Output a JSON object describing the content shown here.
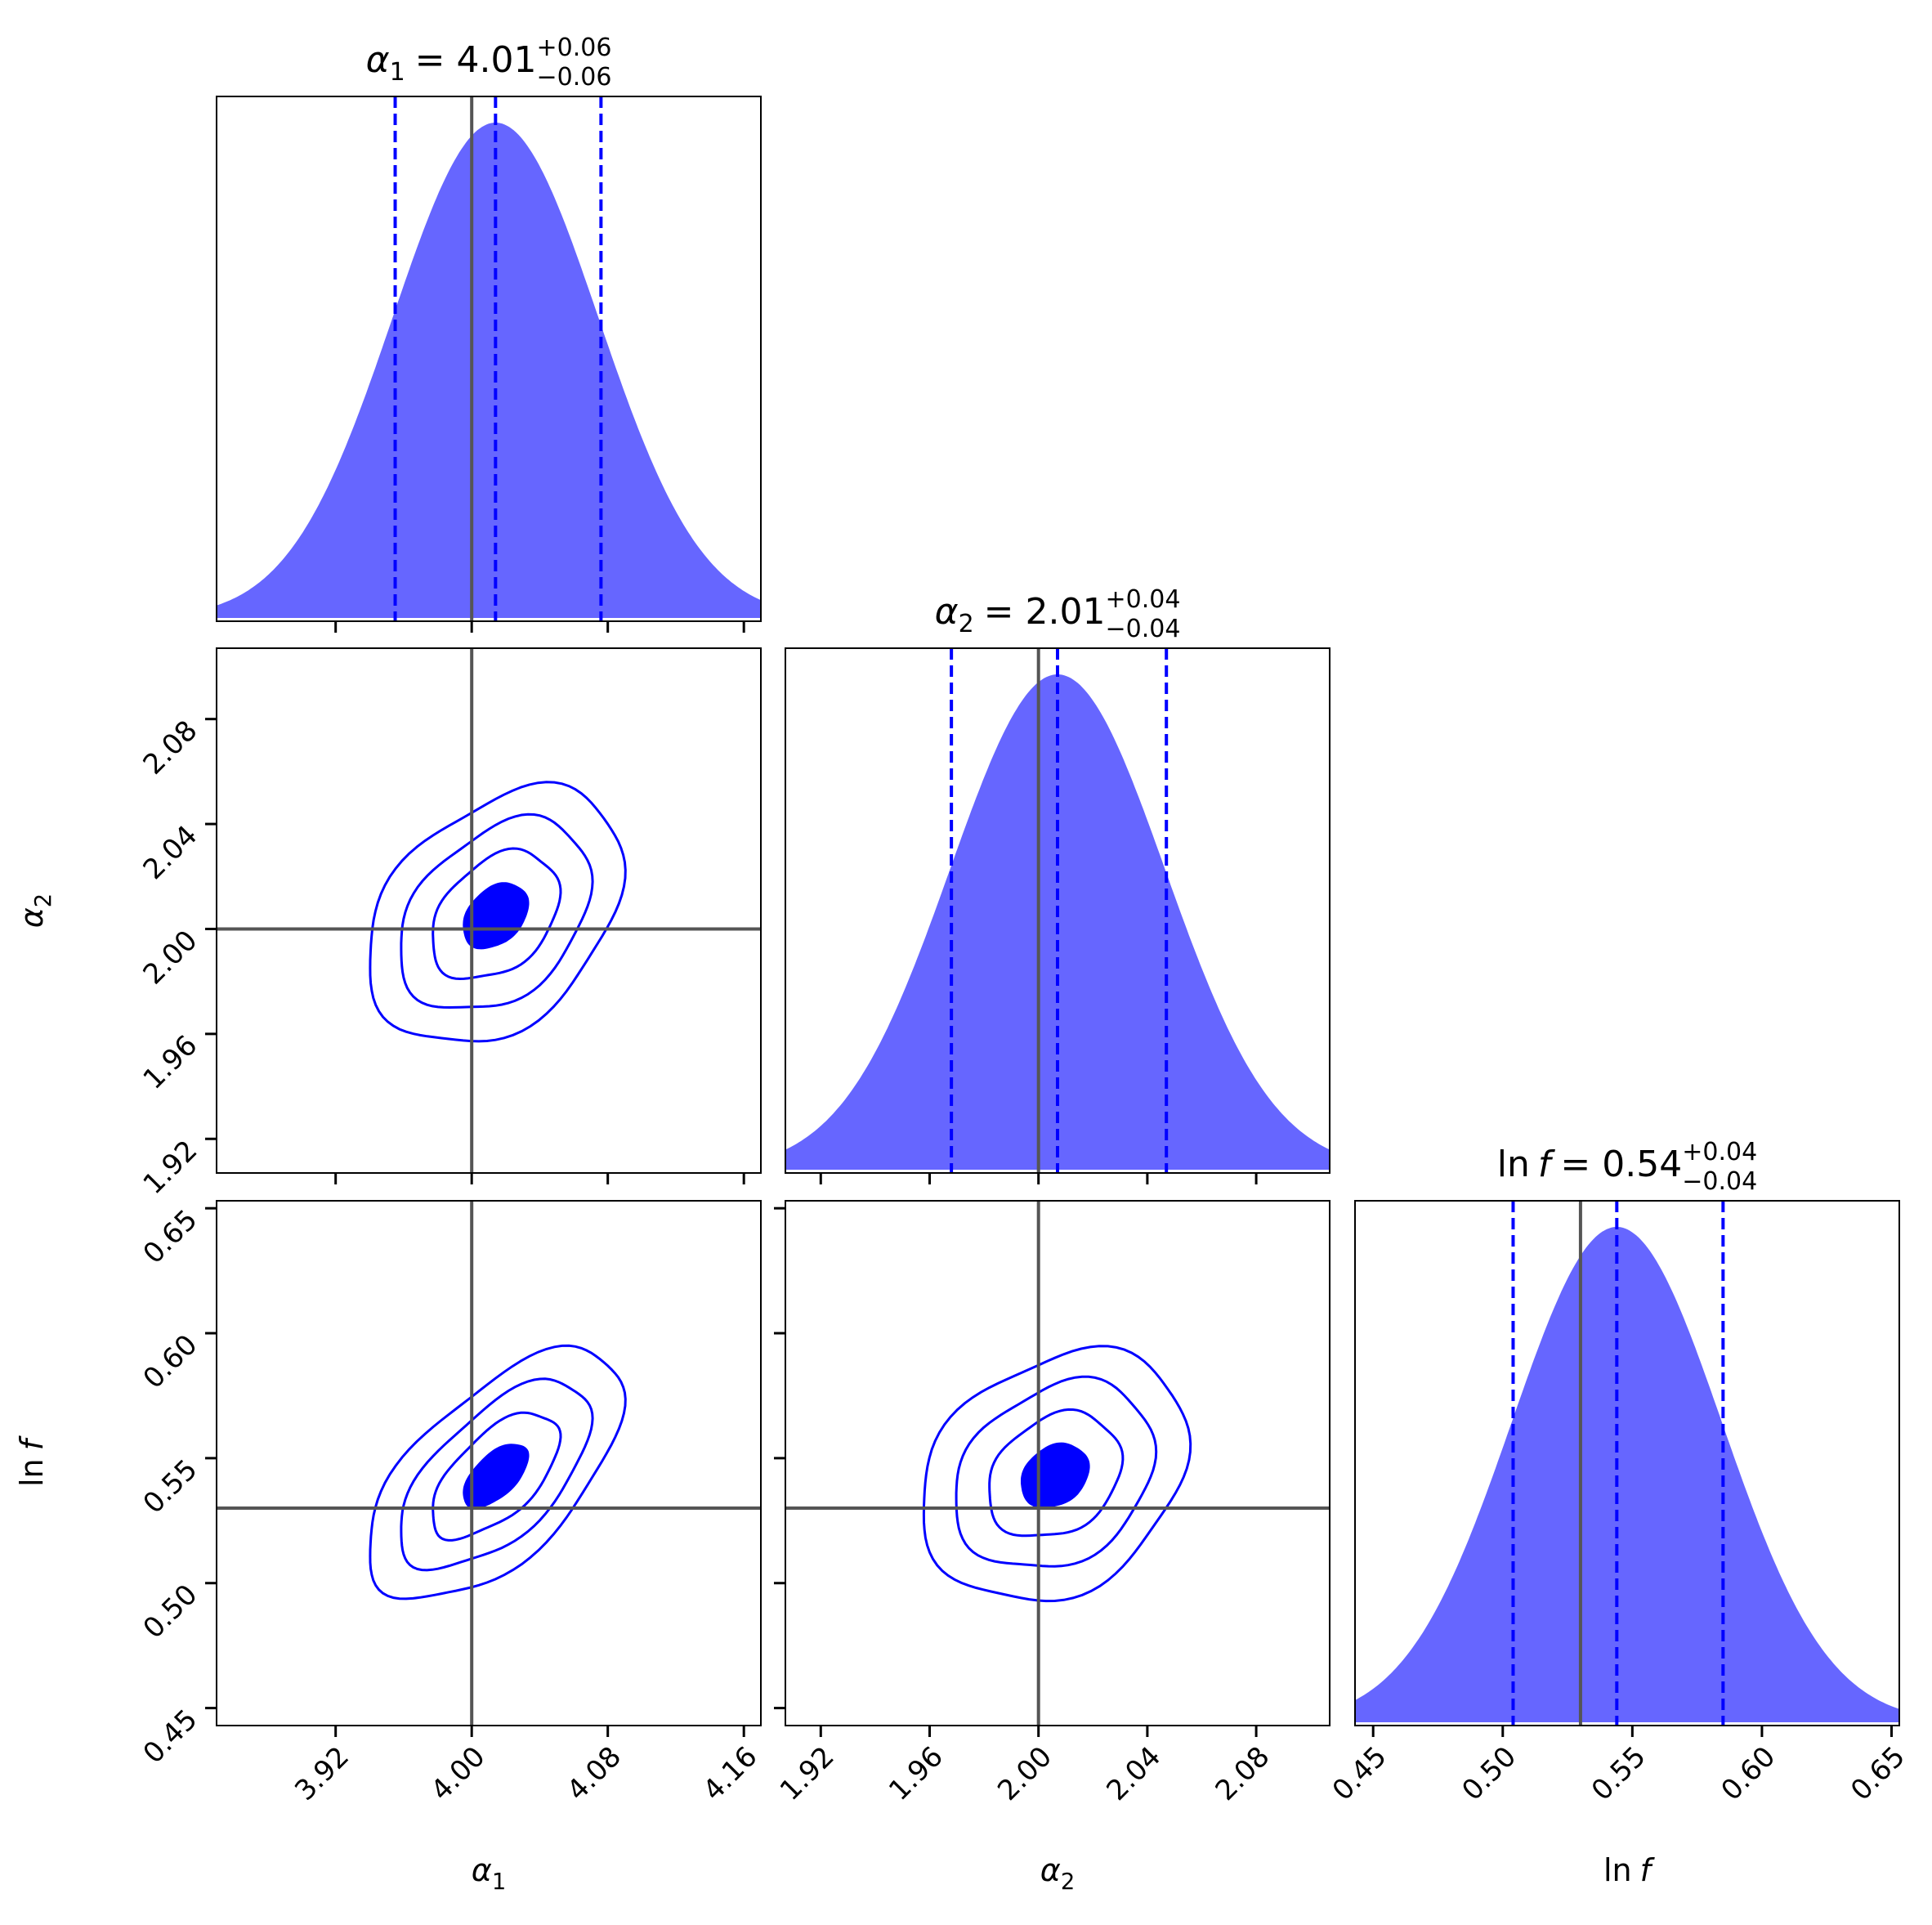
{
  "chart_data": {
    "type": "corner",
    "parameters": [
      {
        "key": "a1",
        "label_symbol": "α",
        "label_sub": "1",
        "label_italic": "",
        "range": [
          3.85,
          4.17
        ],
        "ticks": [
          "3.92",
          "4.00",
          "4.08",
          "4.16"
        ],
        "tick_values": [
          3.92,
          4.0,
          4.08,
          4.16
        ],
        "truth": 4.0,
        "median": 4.014,
        "q16": 3.955,
        "q84": 4.076,
        "sigma": 0.0605,
        "title": {
          "eq": "= 4.01",
          "plus": "+0.06",
          "minus": "−0.06"
        }
      },
      {
        "key": "a2",
        "label_symbol": "α",
        "label_sub": "2",
        "label_italic": "",
        "range": [
          1.907,
          2.107
        ],
        "ticks": [
          "1.92",
          "1.96",
          "2.00",
          "2.04",
          "2.08"
        ],
        "tick_values": [
          1.92,
          1.96,
          2.0,
          2.04,
          2.08
        ],
        "truth": 2.0,
        "median": 2.007,
        "q16": 1.968,
        "q84": 2.047,
        "sigma": 0.0395,
        "title": {
          "eq": "= 2.01",
          "plus": "+0.04",
          "minus": "−0.04"
        }
      },
      {
        "key": "lnf",
        "label_symbol": "ln",
        "label_sub": "",
        "label_italic": "f",
        "range": [
          0.443,
          0.653
        ],
        "ticks": [
          "0.45",
          "0.50",
          "0.55",
          "0.60",
          "0.65"
        ],
        "tick_values": [
          0.45,
          0.5,
          0.55,
          0.6,
          0.65
        ],
        "truth": 0.53,
        "median": 0.544,
        "q16": 0.504,
        "q84": 0.585,
        "sigma": 0.0405,
        "title": {
          "eq": "= 0.54",
          "plus": "+0.04",
          "minus": "−0.04"
        }
      }
    ],
    "contours": [
      {
        "x": "a1",
        "y": "a2",
        "center": [
          4.014,
          2.005
        ],
        "rho": 0.35,
        "levels": [
          0.5,
          1.0,
          1.5,
          2.0
        ]
      },
      {
        "x": "a1",
        "y": "lnf",
        "center": [
          4.014,
          0.543
        ],
        "rho": 0.6,
        "levels": [
          0.5,
          1.0,
          1.5,
          2.0
        ]
      },
      {
        "x": "a2",
        "y": "lnf",
        "center": [
          2.006,
          0.543
        ],
        "rho": 0.25,
        "levels": [
          0.5,
          1.0,
          1.5,
          2.0
        ]
      }
    ],
    "colors": {
      "posterior": "#0000ff",
      "hist_fill": "#6666ff",
      "truth": "#555555",
      "frame": "#000000"
    }
  }
}
